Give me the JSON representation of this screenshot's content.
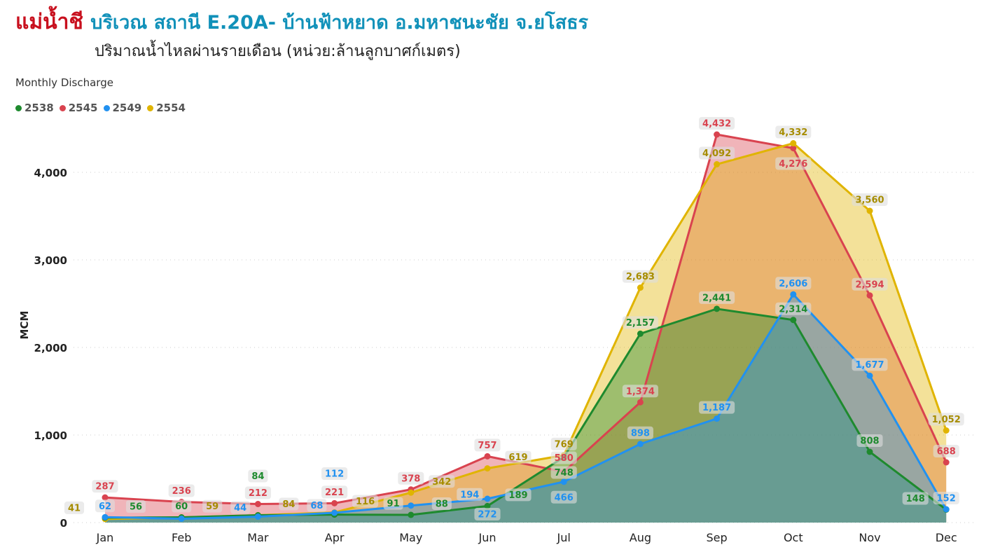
{
  "title": {
    "river": "แม่น้ำชี",
    "station": "บริเวณ สถานี E.20A- บ้านฟ้าหยาด อ.มหาชนะชัย จ.ยโสธร",
    "subtitle": "ปริมาณน้ำไหลผ่านรายเดือน (หน่วย:ล้านลูกบาศก์เมตร)"
  },
  "chart_data": {
    "type": "area",
    "title": "Monthly Discharge",
    "ylabel": "MCM",
    "xlabel": "",
    "ylim": [
      0,
      4500
    ],
    "yticks": [
      0,
      1000,
      2000,
      3000,
      4000
    ],
    "ytick_labels": [
      "0",
      "1,000",
      "2,000",
      "3,000",
      "4,000"
    ],
    "grid": true,
    "legend": "top-left",
    "categories": [
      "Jan",
      "Feb",
      "Mar",
      "Apr",
      "May",
      "Jun",
      "Jul",
      "Aug",
      "Sep",
      "Oct",
      "Nov",
      "Dec"
    ],
    "series": [
      {
        "name": "2545",
        "color": "#d9434f",
        "label_color": "#d9434f",
        "values": [
          287,
          236,
          212,
          221,
          378,
          757,
          580,
          1374,
          4432,
          4276,
          2594,
          688
        ]
      },
      {
        "name": "2554",
        "color": "#e0b400",
        "label_color": "#a68c00",
        "values": [
          41,
          59,
          84,
          116,
          342,
          619,
          769,
          2683,
          4092,
          4332,
          3560,
          1052
        ]
      },
      {
        "name": "2538",
        "color": "#1e8a2e",
        "label_color": "#1e8a2e",
        "values": [
          56,
          60,
          84,
          91,
          88,
          189,
          748,
          2157,
          2441,
          2314,
          808,
          148
        ]
      },
      {
        "name": "2549",
        "color": "#2191f0",
        "label_color": "#2191f0",
        "values": [
          62,
          44,
          68,
          112,
          194,
          272,
          466,
          898,
          1187,
          2606,
          1677,
          152
        ]
      }
    ],
    "legend_order": [
      "2538",
      "2545",
      "2549",
      "2554"
    ]
  }
}
